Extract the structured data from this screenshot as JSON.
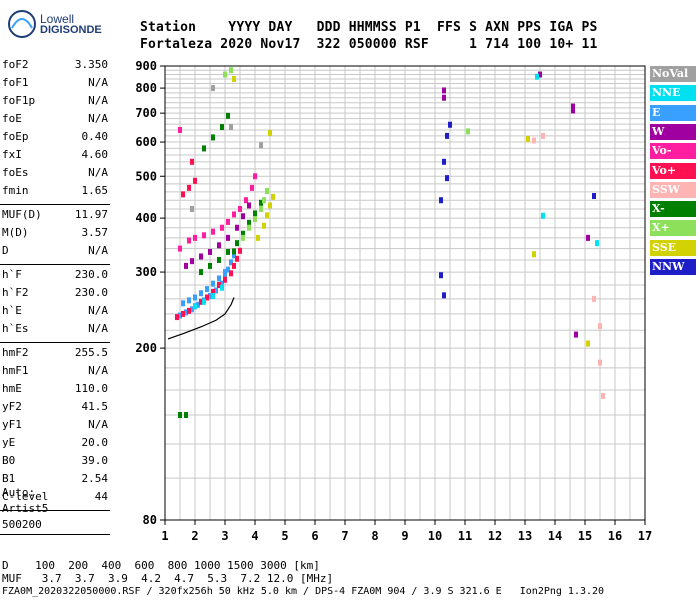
{
  "logo": {
    "line1": "Lowell",
    "line2": "DIGISONDE"
  },
  "header": {
    "line1": "Station    YYYY DAY   DDD HHMMSS P1  FFS S AXN PPS IGA PS",
    "line2": "Fortaleza 2020 Nov17  322 050000 RSF     1 714 100 10+ 11"
  },
  "params": [
    {
      "name": "foF2",
      "value": "3.350"
    },
    {
      "name": "foF1",
      "value": "N/A"
    },
    {
      "name": "foF1p",
      "value": "N/A"
    },
    {
      "name": "foE",
      "value": "N/A"
    },
    {
      "name": "foEp",
      "value": "0.40"
    },
    {
      "name": "fxI",
      "value": "4.60"
    },
    {
      "name": "foEs",
      "value": "N/A"
    },
    {
      "name": "fmin",
      "value": "1.65"
    },
    {
      "name": "MUF(D)",
      "value": "11.97"
    },
    {
      "name": "M(D)",
      "value": "3.57"
    },
    {
      "name": "D",
      "value": "N/A"
    },
    {
      "name": "h`F",
      "value": "230.0"
    },
    {
      "name": "h`F2",
      "value": "230.0"
    },
    {
      "name": "h`E",
      "value": "N/A"
    },
    {
      "name": "h`Es",
      "value": "N/A"
    },
    {
      "name": "hmF2",
      "value": "255.5"
    },
    {
      "name": "hmF1",
      "value": "N/A"
    },
    {
      "name": "hmE",
      "value": "110.0"
    },
    {
      "name": "yF2",
      "value": "41.5"
    },
    {
      "name": "yF1",
      "value": "N/A"
    },
    {
      "name": "yE",
      "value": "20.0"
    },
    {
      "name": "B0",
      "value": "39.0"
    },
    {
      "name": "B1",
      "value": "2.54"
    },
    {
      "name": "C-level",
      "value": "44"
    }
  ],
  "auto": {
    "line1": "Auto:",
    "line2": "Artist5",
    "line3": "500200"
  },
  "legend": [
    {
      "label": "NoVal",
      "color": "#a0a0a0"
    },
    {
      "label": "NNE",
      "color": "#00e0f0"
    },
    {
      "label": "E",
      "color": "#3aa0ff"
    },
    {
      "label": "W",
      "color": "#a000a0"
    },
    {
      "label": "Vo-",
      "color": "#ff1ea0"
    },
    {
      "label": "Vo+",
      "color": "#ff1050"
    },
    {
      "label": "SSW",
      "color": "#ffb4b4"
    },
    {
      "label": "X-",
      "color": "#008000"
    },
    {
      "label": "X+",
      "color": "#8ce05a"
    },
    {
      "label": "SSE",
      "color": "#d2d200"
    },
    {
      "label": "NNW",
      "color": "#1e1ec8"
    }
  ],
  "footer": {
    "line1": "D    100  200  400  600  800 1000 1500 3000 [km]",
    "line2": "MUF   3.7  3.7  3.9  4.2  4.7  5.3  7.2 12.0 [MHz]",
    "line3": "FZA0M_2020322050000.RSF / 320fx256h 50 kHz 5.0 km / DPS-4 FZA0M 904 / 3.9 S 321.6 E   Ion2Png 1.3.20"
  },
  "chart_data": {
    "type": "scatter",
    "title": "",
    "xlabel": "",
    "ylabel": "",
    "xlim": [
      1,
      17
    ],
    "ylim": [
      80,
      900
    ],
    "y_scale": "log",
    "x_ticks": [
      1,
      2,
      3,
      4,
      5,
      6,
      7,
      8,
      9,
      10,
      11,
      12,
      13,
      14,
      15,
      16,
      17
    ],
    "y_ticks": [
      80,
      200,
      300,
      400,
      500,
      600,
      700,
      800,
      900
    ],
    "grid": true,
    "trace_profile": {
      "name": "profile",
      "color": "#000000",
      "points": [
        [
          1.1,
          210
        ],
        [
          1.6,
          216
        ],
        [
          2.2,
          224
        ],
        [
          2.7,
          232
        ],
        [
          3.0,
          240
        ],
        [
          3.2,
          252
        ],
        [
          3.3,
          262
        ]
      ]
    },
    "series": [
      {
        "name": "E",
        "color": "#3aa0ff",
        "points": [
          [
            1.5,
            238
          ],
          [
            1.7,
            242
          ],
          [
            1.9,
            246
          ],
          [
            2.1,
            252
          ],
          [
            2.3,
            258
          ],
          [
            2.5,
            264
          ],
          [
            2.7,
            272
          ],
          [
            2.9,
            282
          ],
          [
            3.0,
            292
          ],
          [
            3.1,
            304
          ],
          [
            3.2,
            316
          ],
          [
            3.3,
            328
          ],
          [
            1.6,
            254
          ],
          [
            1.8,
            258
          ],
          [
            2.0,
            262
          ],
          [
            2.2,
            268
          ],
          [
            2.4,
            274
          ],
          [
            2.6,
            282
          ],
          [
            2.8,
            290
          ],
          [
            3.0,
            300
          ]
        ]
      },
      {
        "name": "Vo+",
        "color": "#ff1050",
        "points": [
          [
            1.4,
            236
          ],
          [
            1.6,
            240
          ],
          [
            1.8,
            244
          ],
          [
            2.0,
            250
          ],
          [
            2.2,
            256
          ],
          [
            2.4,
            262
          ],
          [
            2.6,
            270
          ],
          [
            2.8,
            280
          ],
          [
            3.0,
            288
          ],
          [
            3.2,
            298
          ],
          [
            3.3,
            310
          ],
          [
            3.4,
            322
          ],
          [
            3.5,
            336
          ],
          [
            1.6,
            454
          ],
          [
            1.8,
            470
          ],
          [
            2.0,
            488
          ],
          [
            1.9,
            540
          ]
        ]
      },
      {
        "name": "Vo-",
        "color": "#ff1ea0",
        "points": [
          [
            1.5,
            340
          ],
          [
            1.8,
            355
          ],
          [
            2.0,
            360
          ],
          [
            2.3,
            365
          ],
          [
            2.6,
            372
          ],
          [
            2.9,
            380
          ],
          [
            3.1,
            392
          ],
          [
            3.3,
            408
          ],
          [
            3.5,
            420
          ],
          [
            3.7,
            440
          ],
          [
            3.9,
            470
          ],
          [
            4.0,
            500
          ],
          [
            1.5,
            640
          ]
        ]
      },
      {
        "name": "W",
        "color": "#a000a0",
        "points": [
          [
            1.7,
            310
          ],
          [
            1.9,
            318
          ],
          [
            2.2,
            326
          ],
          [
            2.5,
            334
          ],
          [
            2.8,
            346
          ],
          [
            3.1,
            360
          ],
          [
            3.4,
            380
          ],
          [
            3.6,
            404
          ],
          [
            3.8,
            428
          ],
          [
            10.3,
            790
          ],
          [
            10.3,
            760
          ],
          [
            13.5,
            860
          ],
          [
            14.6,
            710
          ],
          [
            14.6,
            725
          ],
          [
            14.7,
            215
          ],
          [
            15.1,
            360
          ]
        ]
      },
      {
        "name": "X-",
        "color": "#008000",
        "points": [
          [
            2.2,
            300
          ],
          [
            2.5,
            310
          ],
          [
            2.8,
            320
          ],
          [
            3.1,
            334
          ],
          [
            3.4,
            350
          ],
          [
            3.6,
            368
          ],
          [
            3.8,
            390
          ],
          [
            4.0,
            410
          ],
          [
            4.2,
            434
          ],
          [
            2.3,
            580
          ],
          [
            2.6,
            615
          ],
          [
            2.9,
            650
          ],
          [
            3.1,
            690
          ],
          [
            1.5,
            140
          ],
          [
            1.7,
            140
          ],
          [
            3.3,
            335
          ]
        ]
      },
      {
        "name": "X+",
        "color": "#8ce05a",
        "points": [
          [
            3.6,
            360
          ],
          [
            3.8,
            380
          ],
          [
            4.0,
            398
          ],
          [
            4.2,
            420
          ],
          [
            4.3,
            440
          ],
          [
            4.4,
            462
          ],
          [
            3.0,
            860
          ],
          [
            3.2,
            880
          ],
          [
            11.1,
            635
          ]
        ]
      },
      {
        "name": "SSE",
        "color": "#d2d200",
        "points": [
          [
            4.1,
            360
          ],
          [
            4.3,
            384
          ],
          [
            4.4,
            406
          ],
          [
            4.5,
            428
          ],
          [
            4.6,
            448
          ],
          [
            3.3,
            840
          ],
          [
            4.5,
            630
          ],
          [
            13.1,
            610
          ],
          [
            13.3,
            330
          ],
          [
            15.1,
            205
          ]
        ]
      },
      {
        "name": "NNE",
        "color": "#00e0f0",
        "points": [
          [
            2.0,
            250
          ],
          [
            2.3,
            256
          ],
          [
            2.6,
            264
          ],
          [
            2.9,
            276
          ],
          [
            13.4,
            850
          ],
          [
            15.4,
            350
          ],
          [
            13.6,
            405
          ]
        ]
      },
      {
        "name": "NNW",
        "color": "#1e1ec8",
        "points": [
          [
            10.3,
            540
          ],
          [
            10.4,
            620
          ],
          [
            10.5,
            658
          ],
          [
            10.4,
            495
          ],
          [
            10.2,
            440
          ],
          [
            10.2,
            295
          ],
          [
            10.3,
            265
          ],
          [
            15.3,
            450
          ]
        ]
      },
      {
        "name": "SSW",
        "color": "#ffb4b4",
        "points": [
          [
            13.3,
            605
          ],
          [
            13.6,
            620
          ],
          [
            15.3,
            260
          ],
          [
            15.5,
            225
          ],
          [
            15.5,
            185
          ],
          [
            15.6,
            155
          ]
        ]
      },
      {
        "name": "NoVal",
        "color": "#a0a0a0",
        "points": [
          [
            2.6,
            800
          ],
          [
            3.2,
            650
          ],
          [
            1.9,
            420
          ],
          [
            4.2,
            590
          ]
        ]
      }
    ]
  }
}
